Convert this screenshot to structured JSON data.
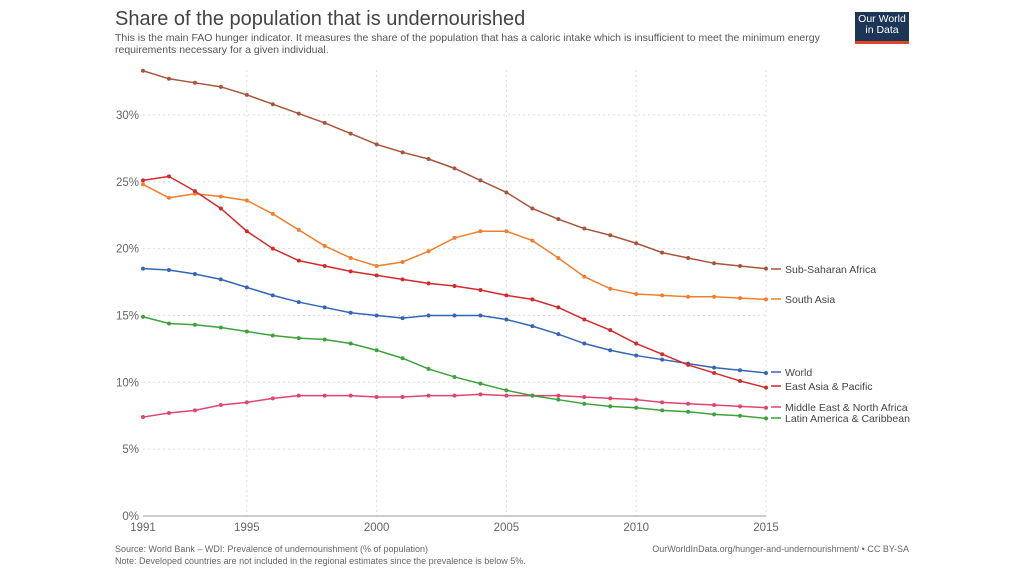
{
  "header": {
    "title": "Share of the population that is undernourished",
    "subtitle": "This is the main FAO hunger indicator. It measures the share of the population that has a caloric intake which is insufficient to meet the minimum energy requirements necessary for a given individual.",
    "logo": "Our World in Data"
  },
  "footer": {
    "source": "Source: World Bank – WDI: Prevalence of undernourishment (% of population)",
    "note": "Note: Developed countries are not included in the regional estimates since the prevalence is below 5%.",
    "url": "OurWorldInData.org/hunger-and-undernourishment/ • CC BY-SA"
  },
  "chart_data": {
    "type": "line",
    "title": "Share of the population that is undernourished",
    "xlim": [
      1991,
      2015
    ],
    "ylim": [
      0,
      33.5
    ],
    "x_ticks": [
      "1991",
      "1995",
      "2000",
      "2005",
      "2010",
      "2015"
    ],
    "y_ticks": [
      "0%",
      "5%",
      "10%",
      "15%",
      "20%",
      "25%",
      "30%"
    ],
    "grid": true,
    "legend": "right-end labels",
    "x": [
      1991,
      1992,
      1993,
      1994,
      1995,
      1996,
      1997,
      1998,
      1999,
      2000,
      2001,
      2002,
      2003,
      2004,
      2005,
      2006,
      2007,
      2008,
      2009,
      2010,
      2011,
      2012,
      2013,
      2014,
      2015
    ],
    "series": [
      {
        "name": "Sub-Saharan Africa",
        "color": "#a9553c",
        "values": [
          33.3,
          32.7,
          32.4,
          32.1,
          31.5,
          30.8,
          30.1,
          29.4,
          28.6,
          27.8,
          27.2,
          26.7,
          26.0,
          25.1,
          24.2,
          23.0,
          22.2,
          21.5,
          21.0,
          20.4,
          19.7,
          19.3,
          18.9,
          18.7,
          18.5
        ]
      },
      {
        "name": "South Asia",
        "color": "#f07f2e",
        "values": [
          24.8,
          23.8,
          24.1,
          23.9,
          23.6,
          22.6,
          21.4,
          20.2,
          19.3,
          18.7,
          19.0,
          19.8,
          20.8,
          21.3,
          21.3,
          20.6,
          19.3,
          17.9,
          17.0,
          16.6,
          16.5,
          16.4,
          16.4,
          16.3,
          16.2
        ]
      },
      {
        "name": "World",
        "color": "#3566b5",
        "values": [
          18.5,
          18.4,
          18.1,
          17.7,
          17.1,
          16.5,
          16.0,
          15.6,
          15.2,
          15.0,
          14.8,
          15.0,
          15.0,
          15.0,
          14.7,
          14.2,
          13.6,
          12.9,
          12.4,
          12.0,
          11.7,
          11.4,
          11.1,
          10.9,
          10.7
        ]
      },
      {
        "name": "East Asia & Pacific",
        "color": "#d22b2b",
        "values": [
          25.1,
          25.4,
          24.3,
          23.0,
          21.3,
          20.0,
          19.1,
          18.7,
          18.3,
          18.0,
          17.7,
          17.4,
          17.2,
          16.9,
          16.5,
          16.2,
          15.6,
          14.7,
          13.9,
          12.9,
          12.1,
          11.3,
          10.7,
          10.1,
          9.6
        ]
      },
      {
        "name": "Middle East & North Africa",
        "color": "#e0456e",
        "values": [
          7.4,
          7.7,
          7.9,
          8.3,
          8.5,
          8.8,
          9.0,
          9.0,
          9.0,
          8.9,
          8.9,
          9.0,
          9.0,
          9.1,
          9.0,
          9.0,
          9.0,
          8.9,
          8.8,
          8.7,
          8.5,
          8.4,
          8.3,
          8.2,
          8.1
        ]
      },
      {
        "name": "Latin America & Caribbean",
        "color": "#3da23b",
        "values": [
          14.9,
          14.4,
          14.3,
          14.1,
          13.8,
          13.5,
          13.3,
          13.2,
          12.9,
          12.4,
          11.8,
          11.0,
          10.4,
          9.9,
          9.4,
          9.0,
          8.7,
          8.4,
          8.2,
          8.1,
          7.9,
          7.8,
          7.6,
          7.5,
          7.3
        ]
      }
    ]
  }
}
